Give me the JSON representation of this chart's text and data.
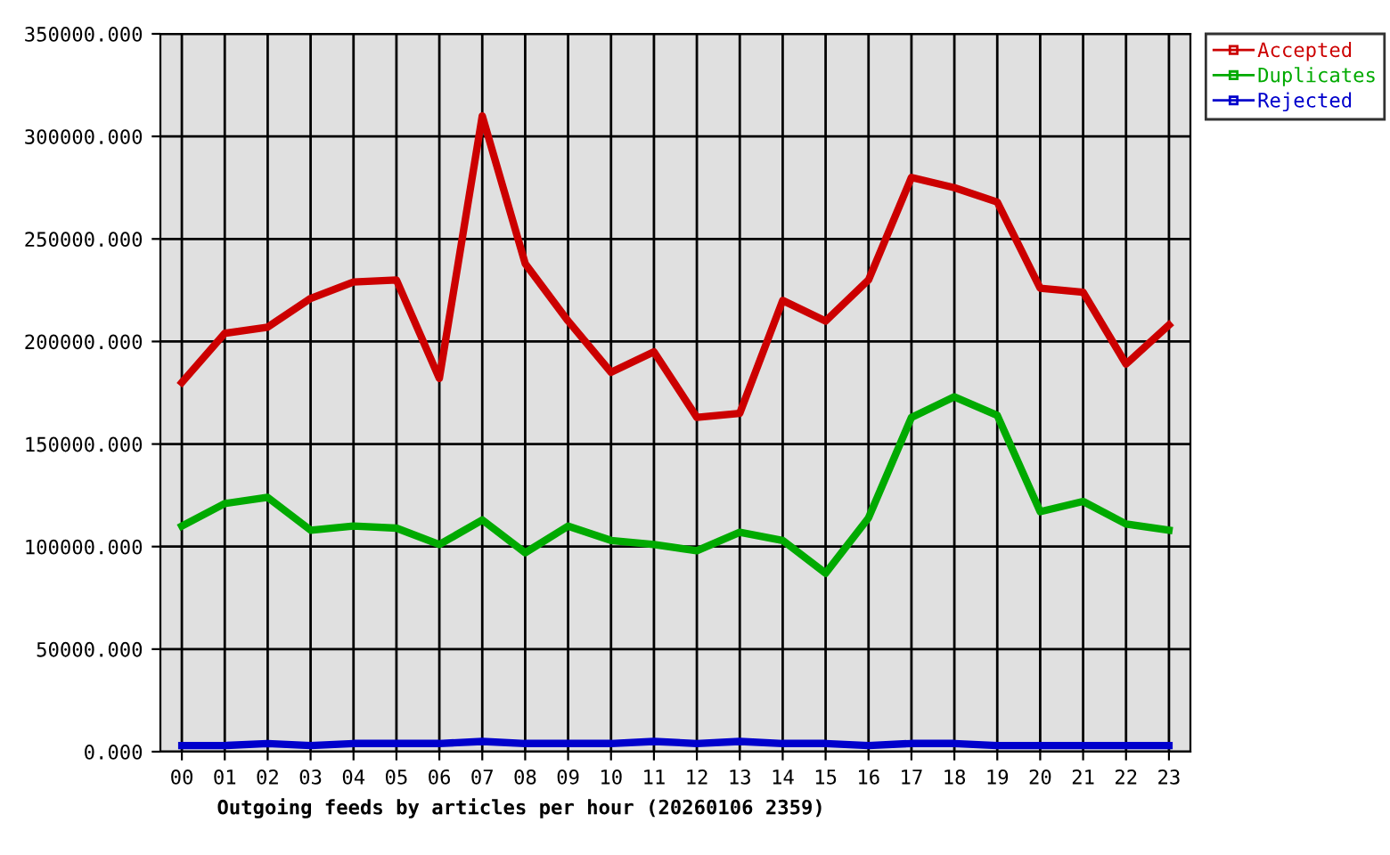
{
  "chart_data": {
    "type": "line",
    "xlabel": "Outgoing feeds by articles per hour (20260106 2359)",
    "categories": [
      "00",
      "01",
      "02",
      "03",
      "04",
      "05",
      "06",
      "07",
      "08",
      "09",
      "10",
      "11",
      "12",
      "13",
      "14",
      "15",
      "16",
      "17",
      "18",
      "19",
      "20",
      "21",
      "22",
      "23"
    ],
    "series": [
      {
        "name": "Accepted",
        "color": "#cc0000",
        "values": [
          180000,
          204000,
          207000,
          221000,
          229000,
          230000,
          182000,
          310000,
          238000,
          210000,
          185000,
          195000,
          163000,
          165000,
          220000,
          210000,
          230000,
          280000,
          275000,
          268000,
          226000,
          224000,
          189000,
          208000
        ]
      },
      {
        "name": "Duplicates",
        "color": "#00aa00",
        "values": [
          110000,
          121000,
          124000,
          108000,
          110000,
          109000,
          101000,
          113000,
          97000,
          110000,
          103000,
          101000,
          98000,
          107000,
          103000,
          87000,
          114000,
          163000,
          173000,
          164000,
          117000,
          122000,
          111000,
          108000
        ]
      },
      {
        "name": "Rejected",
        "color": "#0000cc",
        "values": [
          3000,
          3000,
          4000,
          3000,
          4000,
          4000,
          4000,
          5000,
          4000,
          4000,
          4000,
          5000,
          4000,
          5000,
          4000,
          4000,
          3000,
          4000,
          4000,
          3000,
          3000,
          3000,
          3000,
          3000
        ]
      }
    ],
    "ylim": [
      0,
      350000
    ],
    "yticks": [
      {
        "value": 0,
        "label": "0.000"
      },
      {
        "value": 50000,
        "label": "50000.000"
      },
      {
        "value": 100000,
        "label": "100000.000"
      },
      {
        "value": 150000,
        "label": "150000.000"
      },
      {
        "value": 200000,
        "label": "200000.000"
      },
      {
        "value": 250000,
        "label": "250000.000"
      },
      {
        "value": 300000,
        "label": "300000.000"
      },
      {
        "value": 350000,
        "label": "350000.000"
      }
    ],
    "grid": true,
    "legend": "top right",
    "marker": "none",
    "line_style": "solid"
  }
}
